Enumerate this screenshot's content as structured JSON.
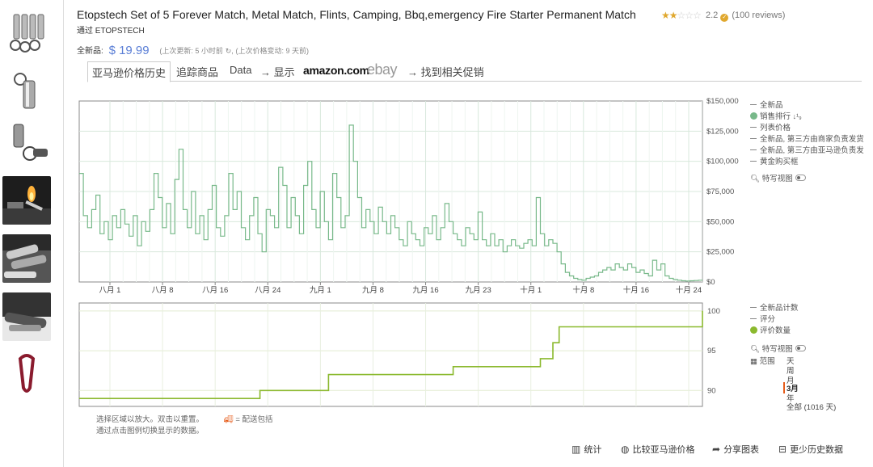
{
  "product": {
    "title": "Etopstech Set of 5 Forever Match, Metal Match, Flints, Camping, Bbq,emergency Fire Starter Permanent Match",
    "rating_value": "2.2",
    "review_count": "(100 reviews)",
    "byline": "通过 ETOPSTECH",
    "stars_filled": 2,
    "stars_total": 5
  },
  "price": {
    "label": "全新品:",
    "value": "$ 19.99",
    "last_update": "(上次更新:   5 小时前",
    "last_change": "(上次价格变动: 9 天前)"
  },
  "tabs": [
    {
      "label": "亚马逊价格历史",
      "active": true
    },
    {
      "label": "追踪商品"
    },
    {
      "label": "Data"
    },
    {
      "label": "→ 显示"
    },
    {
      "label": "amazon.com"
    },
    {
      "label": "ebay"
    },
    {
      "label": "→ 找到相关促销"
    }
  ],
  "thumbnails": [
    "keychain-set",
    "single-match",
    "match-keychain",
    "flame",
    "metal-matches",
    "flint-close",
    "carabiner"
  ],
  "legend_top": [
    "全新品",
    "销售排行",
    "列表价格",
    "全新品, 第三方由商家负责发货",
    "全新品, 第三方由亚马逊负责发",
    "黄金购买框"
  ],
  "legend_bottom": [
    "全新品计数",
    "评分",
    "评价数量"
  ],
  "sales_rank_sort_icon": "↓¹₉",
  "closeup_label": "特写视图",
  "range": {
    "label": "范围",
    "options": [
      "天",
      "周",
      "月",
      "3月",
      "年",
      "全部 (1016 天)"
    ],
    "selected": "3月"
  },
  "help": {
    "line1": "选择区域以放大。双击以重置。",
    "shipping_note": "= 配送包括",
    "line2": "通过点击图例切换显示的数据。"
  },
  "footer": [
    "统计",
    "比较亚马逊价格",
    "分享图表",
    "更少历史数据"
  ],
  "colors": {
    "rank_line": "#78b98a",
    "review_line": "#8bb92e",
    "price_blue": "#5b7fd6",
    "accent_orange": "#e65c1a",
    "star": "#e0a82e"
  },
  "chart_data": [
    {
      "type": "line",
      "name": "销售排行",
      "x_labels": [
        "八月 1",
        "八月 8",
        "八月 16",
        "八月 24",
        "九月 1",
        "九月 8",
        "九月 16",
        "九月 23",
        "十月 1",
        "十月 8",
        "十月 16",
        "十月 24"
      ],
      "y_ticks": [
        "$150,000",
        "$125,000",
        "$100,000",
        "$75,000",
        "$50,000",
        "$25,000",
        "$0"
      ],
      "ylim": [
        0,
        150000
      ],
      "values": [
        90000,
        55000,
        45000,
        60000,
        72000,
        40000,
        50000,
        35000,
        55000,
        45000,
        60000,
        48000,
        38000,
        55000,
        30000,
        50000,
        42000,
        60000,
        90000,
        70000,
        45000,
        65000,
        40000,
        85000,
        110000,
        60000,
        45000,
        75000,
        40000,
        55000,
        35000,
        60000,
        80000,
        45000,
        38000,
        55000,
        90000,
        60000,
        75000,
        45000,
        35000,
        55000,
        70000,
        40000,
        25000,
        60000,
        55000,
        45000,
        95000,
        80000,
        45000,
        70000,
        55000,
        40000,
        80000,
        100000,
        60000,
        45000,
        75000,
        50000,
        35000,
        90000,
        70000,
        45000,
        55000,
        130000,
        100000,
        70000,
        45000,
        60000,
        50000,
        40000,
        62000,
        50000,
        40000,
        55000,
        45000,
        35000,
        30000,
        50000,
        40000,
        35000,
        30000,
        45000,
        40000,
        55000,
        35000,
        45000,
        65000,
        50000,
        40000,
        35000,
        30000,
        45000,
        40000,
        35000,
        58000,
        35000,
        30000,
        40000,
        30000,
        35000,
        25000,
        30000,
        35000,
        30000,
        28000,
        32000,
        35000,
        30000,
        70000,
        40000,
        30000,
        35000,
        32000,
        25000,
        15000,
        8000,
        5000,
        3000,
        2000,
        1500,
        3000,
        4000,
        5000,
        8000,
        10000,
        12000,
        10000,
        15000,
        12000,
        10000,
        15000,
        12000,
        8000,
        10000,
        7000,
        5000,
        18000,
        10000,
        15000,
        5000,
        3000,
        2000,
        1500,
        1000,
        800,
        1000,
        1200,
        1500
      ]
    },
    {
      "type": "line",
      "name": "评价数量",
      "y_ticks": [
        "100",
        "95",
        "90"
      ],
      "ylim": [
        88,
        101
      ],
      "x_share": [
        0,
        0.28,
        0.29,
        0.39,
        0.4,
        0.59,
        0.6,
        0.71,
        0.74,
        0.76,
        0.77,
        0.98,
        1
      ],
      "values": [
        89,
        89,
        90,
        90,
        92,
        92,
        93,
        93,
        94,
        96,
        98,
        98,
        100
      ]
    }
  ]
}
